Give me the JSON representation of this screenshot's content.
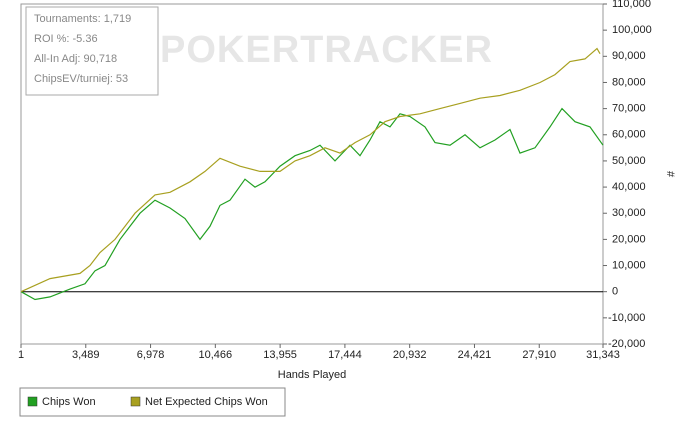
{
  "chart_data": {
    "type": "line",
    "watermark": "POKERTRACKER",
    "annotations": [
      "Tournaments: 1,719",
      "ROI %: -5.36",
      "All-In Adj: 90,718",
      "ChipsEV/turniej: 53"
    ],
    "x_label": "Hands Played",
    "y_label": "#",
    "xlim": [
      1,
      31343
    ],
    "ylim": [
      -20000,
      110000
    ],
    "xticks": [
      1,
      {
        "value": 3489,
        "label": "3,489"
      },
      {
        "value": 6978,
        "label": "6,978"
      },
      {
        "value": 10466,
        "label": "10,466"
      },
      {
        "value": 13955,
        "label": "13,955"
      },
      {
        "value": 17444,
        "label": "17,444"
      },
      {
        "value": 20932,
        "label": "20,932"
      },
      {
        "value": 24421,
        "label": "24,421"
      },
      {
        "value": 27910,
        "label": "27,910"
      },
      {
        "value": 31343,
        "label": "31,343"
      }
    ],
    "yticks": [
      {
        "value": -20000,
        "label": "-20,000"
      },
      {
        "value": -10000,
        "label": "-10,000"
      },
      0,
      {
        "value": 10000,
        "label": "10,000"
      },
      {
        "value": 20000,
        "label": "20,000"
      },
      {
        "value": 30000,
        "label": "30,000"
      },
      {
        "value": 40000,
        "label": "40,000"
      },
      {
        "value": 50000,
        "label": "50,000"
      },
      {
        "value": 60000,
        "label": "60,000"
      },
      {
        "value": 70000,
        "label": "70,000"
      },
      {
        "value": 80000,
        "label": "80,000"
      },
      {
        "value": 90000,
        "label": "90,000"
      },
      {
        "value": 100000,
        "label": "100,000"
      },
      {
        "value": 110000,
        "label": "110,000"
      }
    ],
    "series": [
      {
        "name": "Chips Won",
        "color": "#22a022",
        "x": [
          1,
          755,
          1563,
          2640,
          3447,
          3986,
          4524,
          5332,
          5870,
          6409,
          7217,
          8025,
          8832,
          9640,
          10178,
          10717,
          11255,
          12063,
          12601,
          13140,
          13948,
          14755,
          15563,
          16102,
          16909,
          17717,
          18256,
          18794,
          19333,
          19871,
          20410,
          20948,
          21756,
          22295,
          23102,
          23910,
          24718,
          25525,
          26333,
          26872,
          27680,
          28487,
          29134,
          29834,
          30641,
          31343
        ],
        "values": [
          0,
          -3000,
          -2000,
          1000,
          3000,
          8000,
          10000,
          20000,
          25000,
          30000,
          35000,
          32000,
          28000,
          20000,
          25000,
          33000,
          35000,
          43000,
          40000,
          42000,
          48000,
          52000,
          54000,
          56000,
          50000,
          56000,
          52000,
          58000,
          65000,
          63000,
          68000,
          67000,
          63000,
          57000,
          56000,
          60000,
          55000,
          58000,
          62000,
          53000,
          55000,
          63000,
          70000,
          65000,
          63000,
          56000
        ]
      },
      {
        "name": "Net Expected Chips Won",
        "color": "#a8a020",
        "x": [
          1,
          1563,
          3178,
          3717,
          4255,
          5063,
          6140,
          7217,
          8025,
          9101,
          9909,
          10717,
          11794,
          12871,
          13948,
          14755,
          15563,
          16371,
          17179,
          17986,
          18794,
          19602,
          20410,
          21487,
          22564,
          23641,
          24718,
          25795,
          26872,
          27949,
          28757,
          29564,
          30372,
          31018,
          31180
        ],
        "values": [
          0,
          5000,
          7000,
          10000,
          15000,
          20000,
          30000,
          37000,
          38000,
          42000,
          46000,
          51000,
          48000,
          46000,
          46000,
          50000,
          52000,
          55000,
          53000,
          57000,
          60000,
          65000,
          67000,
          68000,
          70000,
          72000,
          74000,
          75000,
          77000,
          80000,
          83000,
          88000,
          89000,
          93000,
          91000
        ]
      }
    ]
  }
}
